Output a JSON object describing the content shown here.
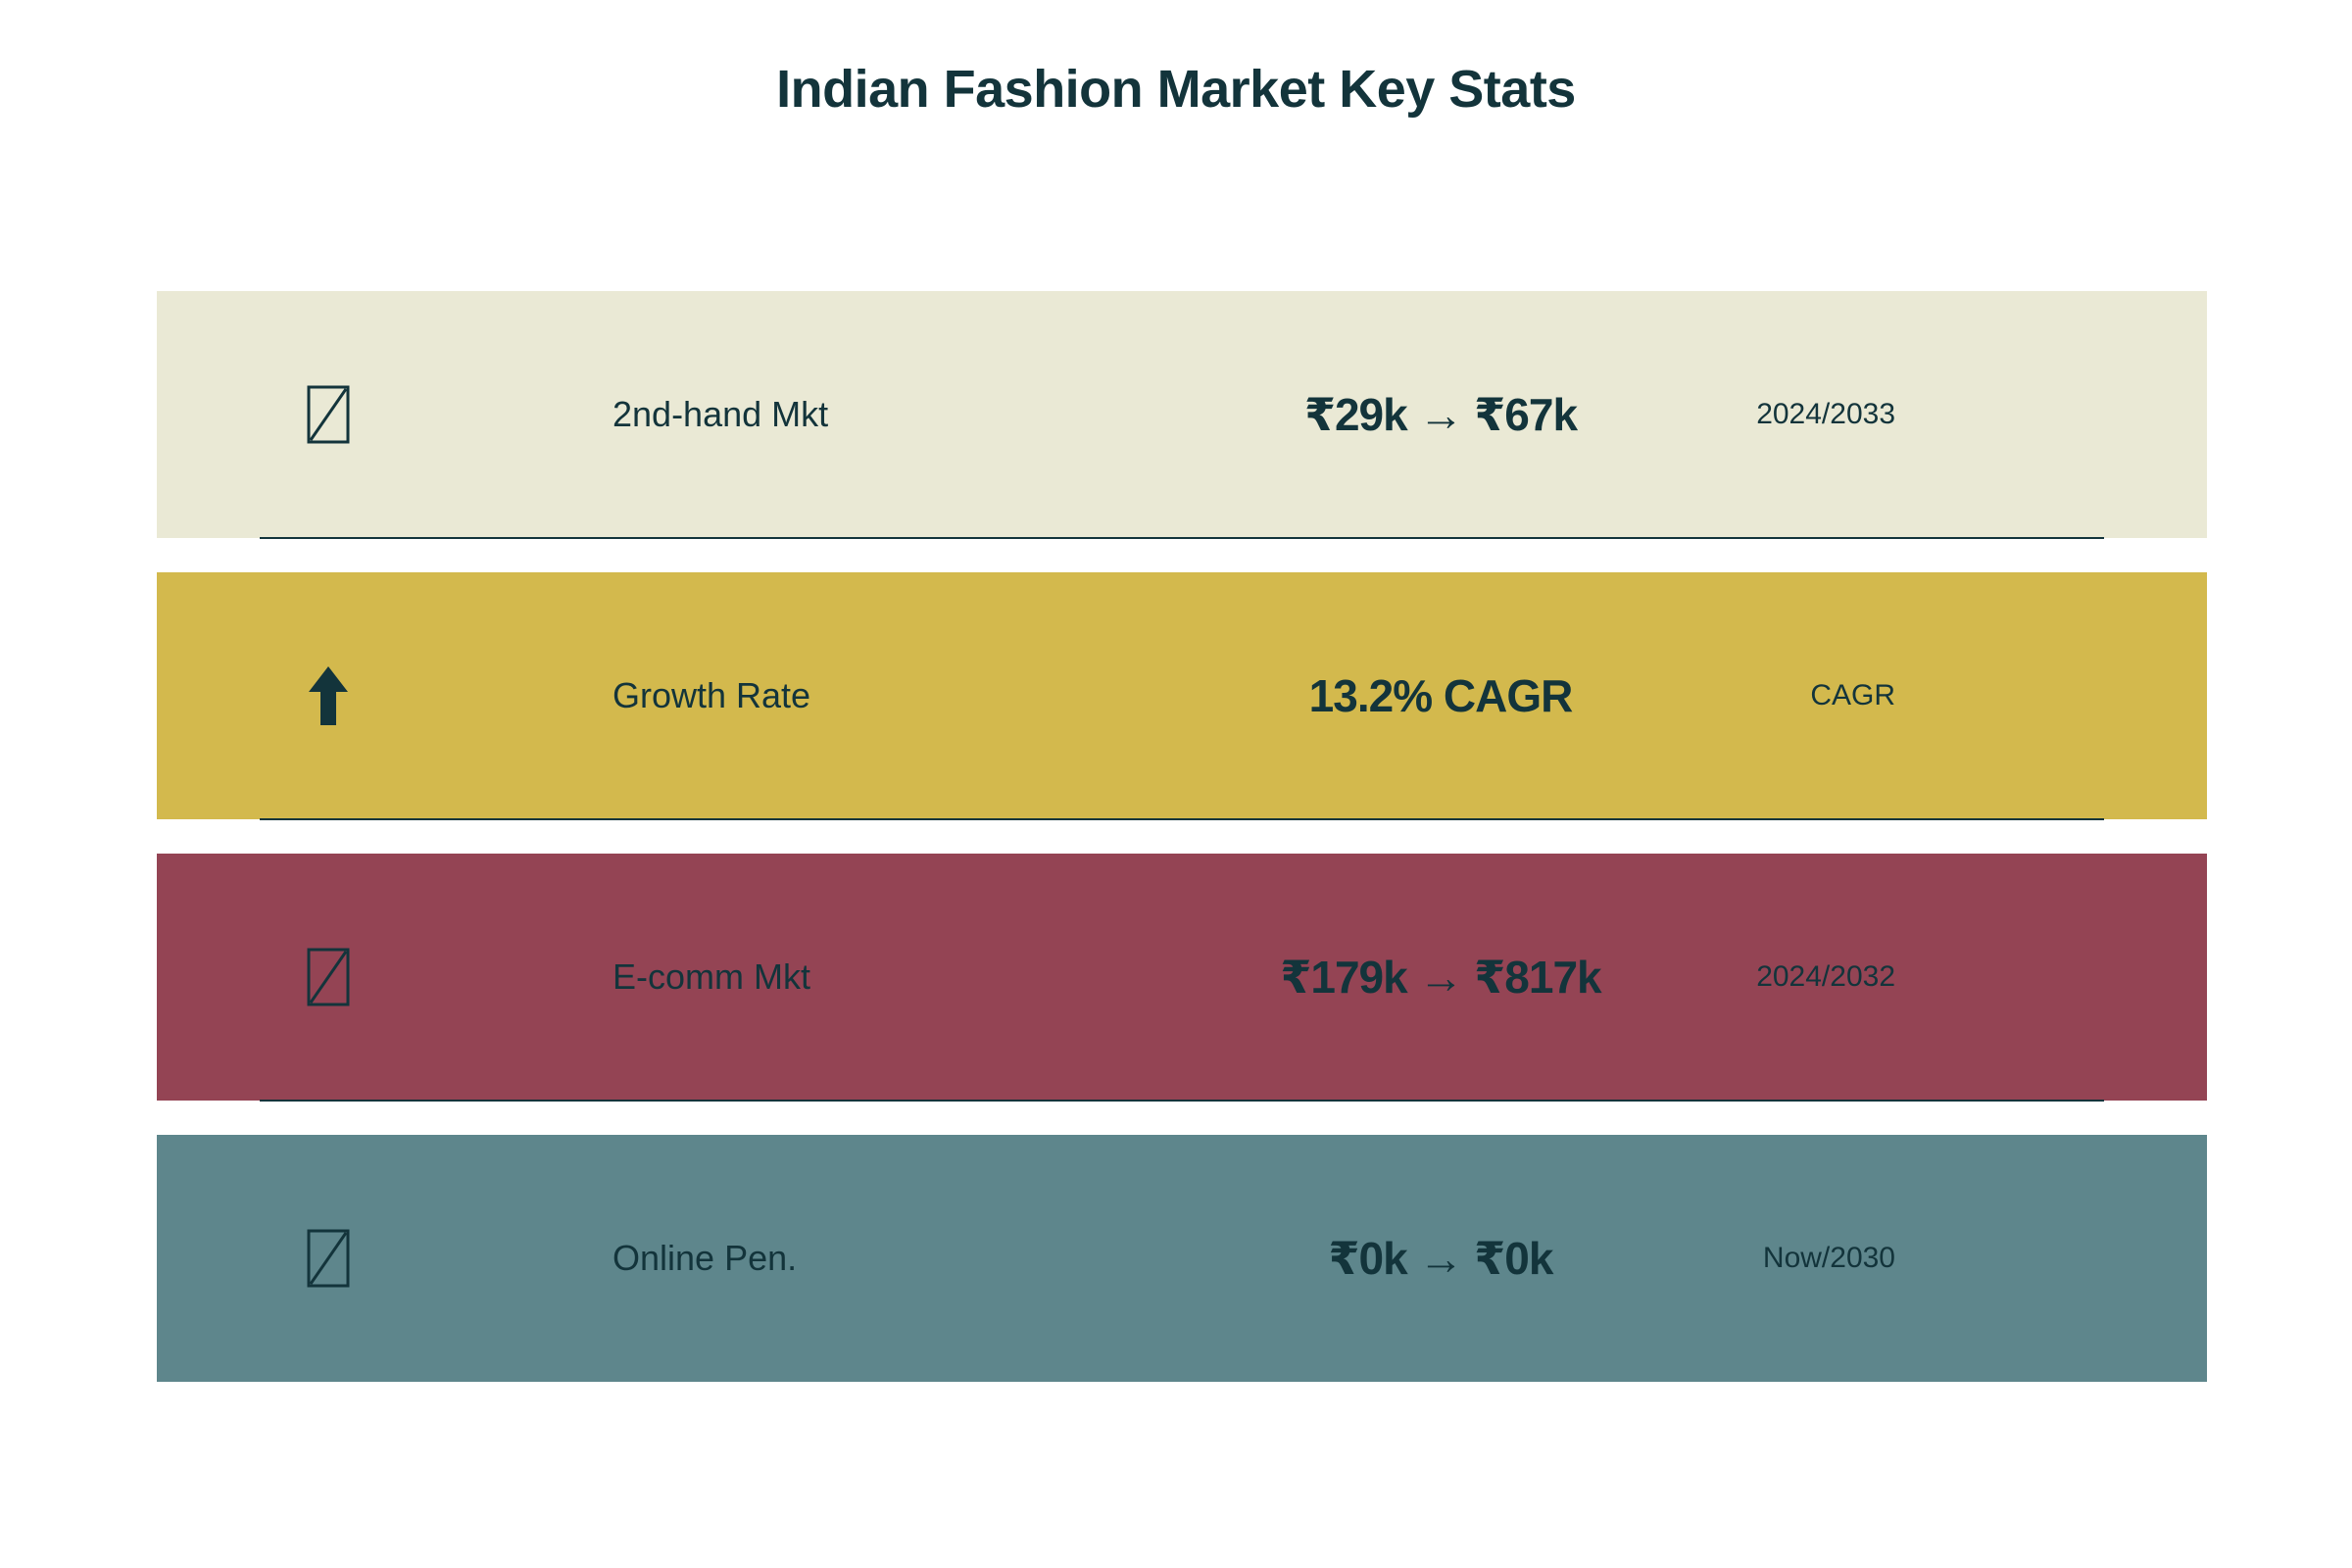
{
  "page": {
    "title": "Indian Fashion Market Key Stats"
  },
  "chart_data": {
    "type": "table",
    "title": "Indian Fashion Market Key Stats",
    "rows": [
      {
        "icon": "missing-glyph-icon",
        "label": "2nd-hand Mkt",
        "value": "₹29k → ₹67k",
        "period": "2024/2033",
        "color": "#eae9d5"
      },
      {
        "icon": "up-arrow-icon",
        "label": "Growth Rate",
        "value": "13.2% CAGR",
        "period": "CAGR",
        "color": "#d3b94d"
      },
      {
        "icon": "missing-glyph-icon",
        "label": "E-comm Mkt",
        "value": "₹179k → ₹817k",
        "period": "2024/2032",
        "color": "#944454"
      },
      {
        "icon": "missing-glyph-icon",
        "label": "Online Pen.",
        "value": "₹0k → ₹0k",
        "period": "Now/2030",
        "color": "#5e868c"
      }
    ]
  },
  "colors": {
    "text": "#13343b",
    "divider": "#13343b",
    "background": "#ffffff"
  }
}
